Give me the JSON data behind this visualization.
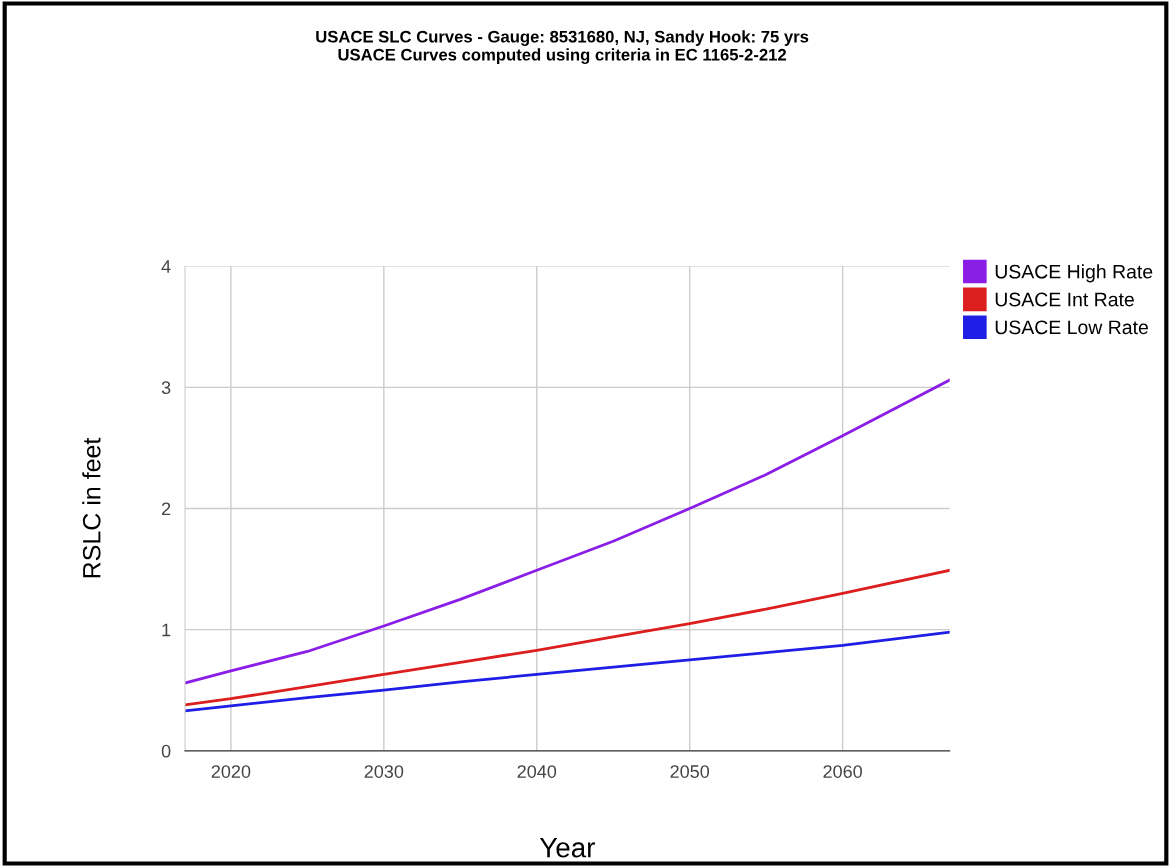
{
  "chart_data": {
    "type": "line",
    "title": "USACE SLC Curves - Gauge: 8531680, NJ, Sandy Hook: 75 yrs\nUSACE Curves computed using criteria in EC 1165-2-212",
    "xlabel": "Year",
    "ylabel": "RSLC in feet",
    "x": [
      2017,
      2020,
      2025,
      2030,
      2035,
      2040,
      2045,
      2050,
      2055,
      2060,
      2067
    ],
    "series": [
      {
        "name": "USACE High Rate",
        "color": "#8b1ee6",
        "values": [
          0.56,
          0.66,
          0.82,
          1.03,
          1.25,
          1.49,
          1.73,
          2.0,
          2.28,
          2.6,
          3.06
        ]
      },
      {
        "name": "USACE Int Rate",
        "color": "#dc1e1e",
        "values": [
          0.38,
          0.43,
          0.53,
          0.63,
          0.73,
          0.83,
          0.94,
          1.05,
          1.17,
          1.3,
          1.49
        ]
      },
      {
        "name": "USACE Low Rate",
        "color": "#1e1ee6",
        "values": [
          0.33,
          0.37,
          0.44,
          0.5,
          0.57,
          0.63,
          0.69,
          0.75,
          0.81,
          0.87,
          0.98
        ]
      }
    ],
    "xlim": [
      2017,
      2067
    ],
    "xticks": [
      2020,
      2030,
      2040,
      2050,
      2060
    ],
    "ylim": [
      0,
      4
    ],
    "yticks": [
      0,
      1,
      2,
      3,
      4
    ],
    "grid": true,
    "legend": "right",
    "marker": "none",
    "line_style": "solid"
  }
}
